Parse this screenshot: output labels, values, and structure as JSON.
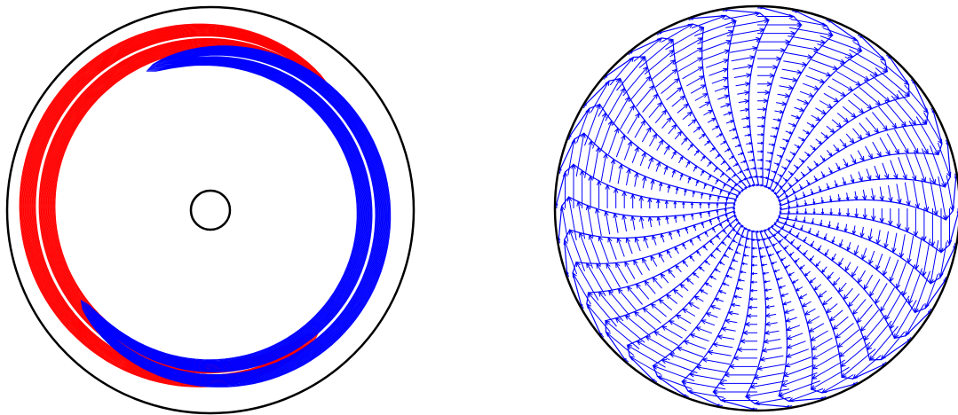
{
  "colors": {
    "positive": "#ff0000",
    "negative": "#0000ff",
    "boundary": "#000000",
    "vectors": "#0000ff",
    "background": "#ffffff"
  },
  "panels": [
    {
      "name": "contour-panel",
      "kind": "annular contour lines, two lobes (red and blue)"
    },
    {
      "name": "vector-panel",
      "kind": "radial velocity profile arrows in a disk"
    }
  ]
}
